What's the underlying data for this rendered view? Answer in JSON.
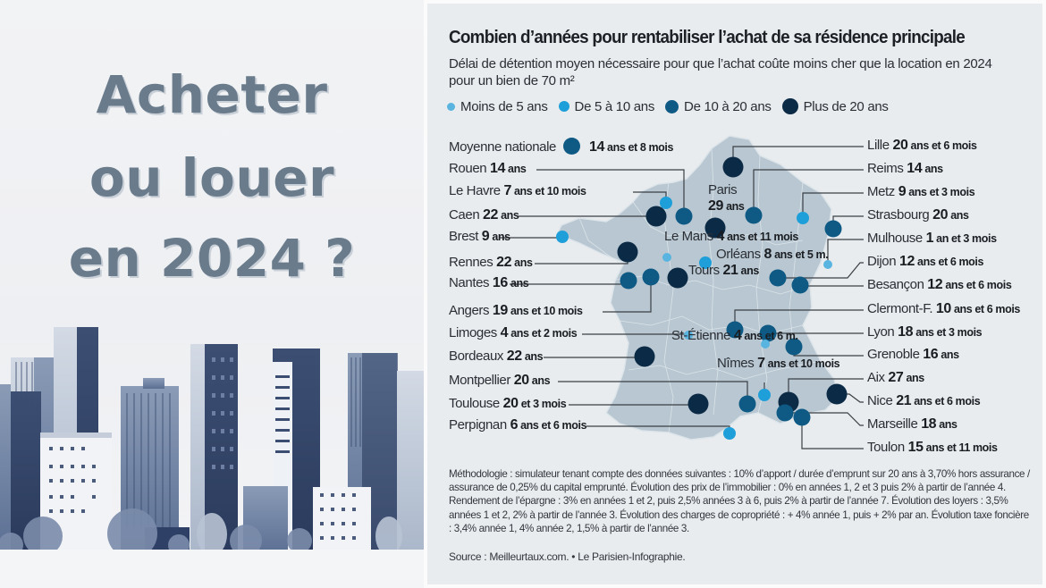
{
  "left_panel": {
    "headline": [
      "Acheter",
      "ou louer",
      "en 2024 ?"
    ],
    "illustration": "city-skyline-illustration"
  },
  "infographic": {
    "title": "Combien d’années pour rentabiliser l’achat de sa résidence principale",
    "subtitle": "Délai de détention moyen nécessaire pour que l’achat coûte moins cher que la location en 2024 pour un bien de 70 m²",
    "methodology": "Méthodologie : simulateur tenant compte des données suivantes : 10% d’apport / durée d’emprunt sur 20 ans à 3,70% hors assurance / assurance de 0,25% du capital emprunté. Évolution des prix de l’immobilier : 0% en années 1, 2 et 3 puis 2% à partir de l’année 4. Rendement de l’épargne : 3% en années 1 et 2, puis 2,5% années 3 à 6, puis 2% à partir de l’année 7. Évolution des loyers : 3,5% années 1 et 2, 2% à partir de l’année 3. Évolution des charges de copropriété : + 4% année 1, puis + 2% par an. Évolution taxe foncière : 3,4% année 1, 4% année 2, 1,5% à partir de l’année 3.",
    "source": "Source : Meilleurtaux.com. • Le Parisien-Infographie."
  },
  "colors": {
    "cat1": "#5ab4e0",
    "cat2": "#1e9fd9",
    "cat3": "#0e5a85",
    "cat4": "#0b2a45",
    "map_fill": "#b8c7d1",
    "map_border": "#dde5ea",
    "leader": "#3a3f45"
  },
  "chart_data": {
    "type": "map",
    "title": "Combien d’années pour rentabiliser l’achat de sa résidence principale",
    "region": "France",
    "unit": "years",
    "legend": [
      {
        "key": "cat1",
        "label": "Moins de 5 ans"
      },
      {
        "key": "cat2",
        "label": "De 5 à 10 ans"
      },
      {
        "key": "cat3",
        "label": "De 10 à 20 ans"
      },
      {
        "key": "cat4",
        "label": "Plus de 20 ans"
      }
    ],
    "national_average": {
      "label": "Moyenne nationale",
      "value": "14",
      "unit": "ans et 8 mois",
      "years": 14.67,
      "cat": "cat3"
    },
    "cities": [
      {
        "name": "Rouen",
        "value": "14",
        "unit": "ans",
        "years": 14,
        "cat": "cat3"
      },
      {
        "name": "Le Havre",
        "value": "7",
        "unit": "ans et 10 mois",
        "years": 7.83,
        "cat": "cat2"
      },
      {
        "name": "Caen",
        "value": "22",
        "unit": "ans",
        "years": 22,
        "cat": "cat4"
      },
      {
        "name": "Brest",
        "value": "9",
        "unit": "ans",
        "years": 9,
        "cat": "cat2"
      },
      {
        "name": "Rennes",
        "value": "22",
        "unit": "ans",
        "years": 22,
        "cat": "cat4"
      },
      {
        "name": "Nantes",
        "value": "16",
        "unit": "ans",
        "years": 16,
        "cat": "cat3"
      },
      {
        "name": "Angers",
        "value": "19",
        "unit": "ans et 10 mois",
        "years": 19.83,
        "cat": "cat3"
      },
      {
        "name": "Limoges",
        "value": "4",
        "unit": "ans et 2 mois",
        "years": 4.17,
        "cat": "cat1"
      },
      {
        "name": "Bordeaux",
        "value": "22",
        "unit": "ans",
        "years": 22,
        "cat": "cat4"
      },
      {
        "name": "Montpellier",
        "value": "20",
        "unit": "ans",
        "years": 20,
        "cat": "cat3"
      },
      {
        "name": "Toulouse",
        "value": "20",
        "unit": "et 3 mois",
        "years": 20.25,
        "cat": "cat4"
      },
      {
        "name": "Perpignan",
        "value": "6",
        "unit": "ans et 6 mois",
        "years": 6.5,
        "cat": "cat2"
      },
      {
        "name": "Lille",
        "value": "20",
        "unit": "ans et 6 mois",
        "years": 20.5,
        "cat": "cat4"
      },
      {
        "name": "Reims",
        "value": "14",
        "unit": "ans",
        "years": 14,
        "cat": "cat3"
      },
      {
        "name": "Metz",
        "value": "9",
        "unit": "ans et 3 mois",
        "years": 9.25,
        "cat": "cat2"
      },
      {
        "name": "Strasbourg",
        "value": "20",
        "unit": "ans",
        "years": 20,
        "cat": "cat3"
      },
      {
        "name": "Mulhouse",
        "value": "1",
        "unit": "an et 3 mois",
        "years": 1.25,
        "cat": "cat1"
      },
      {
        "name": "Dijon",
        "value": "12",
        "unit": "ans et 6 mois",
        "years": 12.5,
        "cat": "cat3"
      },
      {
        "name": "Besançon",
        "value": "12",
        "unit": "ans et 6 mois",
        "years": 12.5,
        "cat": "cat3"
      },
      {
        "name": "Clermont-F.",
        "value": "10",
        "unit": "ans et 6 mois",
        "years": 10.5,
        "cat": "cat3"
      },
      {
        "name": "Lyon",
        "value": "18",
        "unit": "ans et 3 mois",
        "years": 18.25,
        "cat": "cat3"
      },
      {
        "name": "Grenoble",
        "value": "16",
        "unit": "ans",
        "years": 16,
        "cat": "cat3"
      },
      {
        "name": "Aix",
        "value": "27",
        "unit": "ans",
        "years": 27,
        "cat": "cat4"
      },
      {
        "name": "Nice",
        "value": "21",
        "unit": "ans et 6 mois",
        "years": 21.5,
        "cat": "cat4"
      },
      {
        "name": "Marseille",
        "value": "18",
        "unit": "ans",
        "years": 18,
        "cat": "cat3"
      },
      {
        "name": "Toulon",
        "value": "15",
        "unit": "ans et 11 mois",
        "years": 15.92,
        "cat": "cat3"
      },
      {
        "name": "Paris",
        "value": "29",
        "unit": "ans",
        "years": 29,
        "cat": "cat4"
      },
      {
        "name": "Le Mans",
        "value": "4",
        "unit": "ans et 11 mois",
        "years": 4.92,
        "cat": "cat1"
      },
      {
        "name": "Orléans",
        "value": "8",
        "unit": "ans et 5 m.",
        "years": 8.42,
        "cat": "cat2"
      },
      {
        "name": "Tours",
        "value": "21",
        "unit": "ans",
        "years": 21,
        "cat": "cat4"
      },
      {
        "name": "St-Étienne",
        "value": "4",
        "unit": "ans et 6 m.",
        "years": 4.5,
        "cat": "cat1"
      },
      {
        "name": "Nîmes",
        "value": "7",
        "unit": "ans et 10 mois",
        "years": 7.83,
        "cat": "cat2"
      }
    ]
  }
}
